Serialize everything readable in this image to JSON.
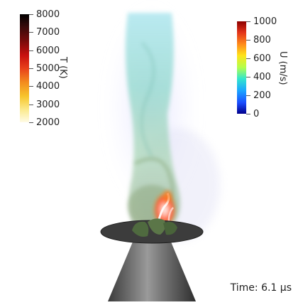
{
  "temperature_colorbar": {
    "title": "T (K)",
    "ticks": [
      "8000",
      "7000",
      "6000",
      "5000",
      "4000",
      "3000",
      "2000"
    ]
  },
  "velocity_colorbar": {
    "title": "U (m/s)",
    "ticks": [
      "1000",
      "800",
      "600",
      "400",
      "200",
      "0"
    ]
  },
  "time_label": "Time: 6.1 µs",
  "colors": {
    "nozzle": "#6e6e6e",
    "plume_low": "#7fd6c9",
    "plume_high": "#cfe9ff",
    "hot_core": "#ff5a1a"
  }
}
